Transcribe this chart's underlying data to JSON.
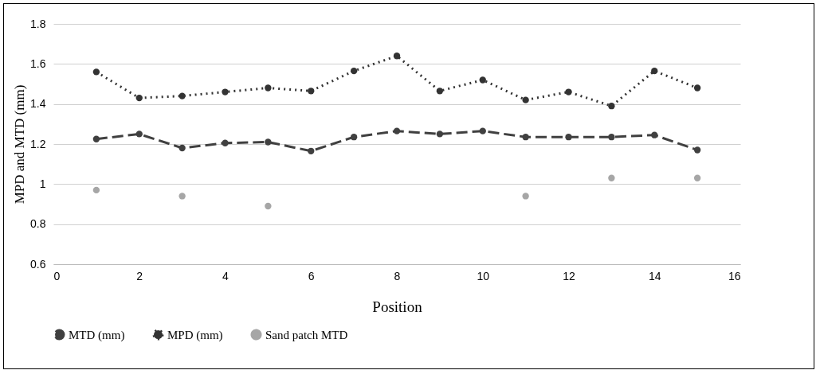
{
  "chart_data": {
    "type": "line",
    "xlabel": "Position",
    "ylabel": "MPD and MTD (mm)",
    "x": [
      1,
      2,
      3,
      4,
      5,
      6,
      7,
      8,
      9,
      10,
      11,
      12,
      13,
      14,
      15
    ],
    "series": [
      {
        "name": "MTD (mm)",
        "color": "#404040",
        "line_style": "dashed",
        "values": [
          1.225,
          1.25,
          1.18,
          1.205,
          1.21,
          1.165,
          1.235,
          1.265,
          1.25,
          1.265,
          1.235,
          1.235,
          1.235,
          1.245,
          1.17
        ]
      },
      {
        "name": "MPD (mm)",
        "color": "#333333",
        "line_style": "dotted",
        "values": [
          1.56,
          1.43,
          1.44,
          1.46,
          1.48,
          1.465,
          1.565,
          1.64,
          1.465,
          1.52,
          1.42,
          1.46,
          1.39,
          1.565,
          1.48
        ]
      },
      {
        "name": "Sand patch MTD",
        "type": "scatter",
        "color": "#a6a6a6",
        "x": [
          1,
          3,
          5,
          11,
          13,
          15
        ],
        "values": [
          0.97,
          0.94,
          0.89,
          0.94,
          1.03,
          1.03
        ]
      }
    ],
    "xlim": [
      0,
      16
    ],
    "xticks": [
      0,
      2,
      4,
      6,
      8,
      10,
      12,
      14,
      16
    ],
    "ylim": [
      0.6,
      1.8
    ],
    "yticks": [
      0.6,
      0.8,
      1,
      1.2,
      1.4,
      1.6,
      1.8
    ],
    "grid": "y",
    "legend": "bottom",
    "marker": "circle"
  }
}
